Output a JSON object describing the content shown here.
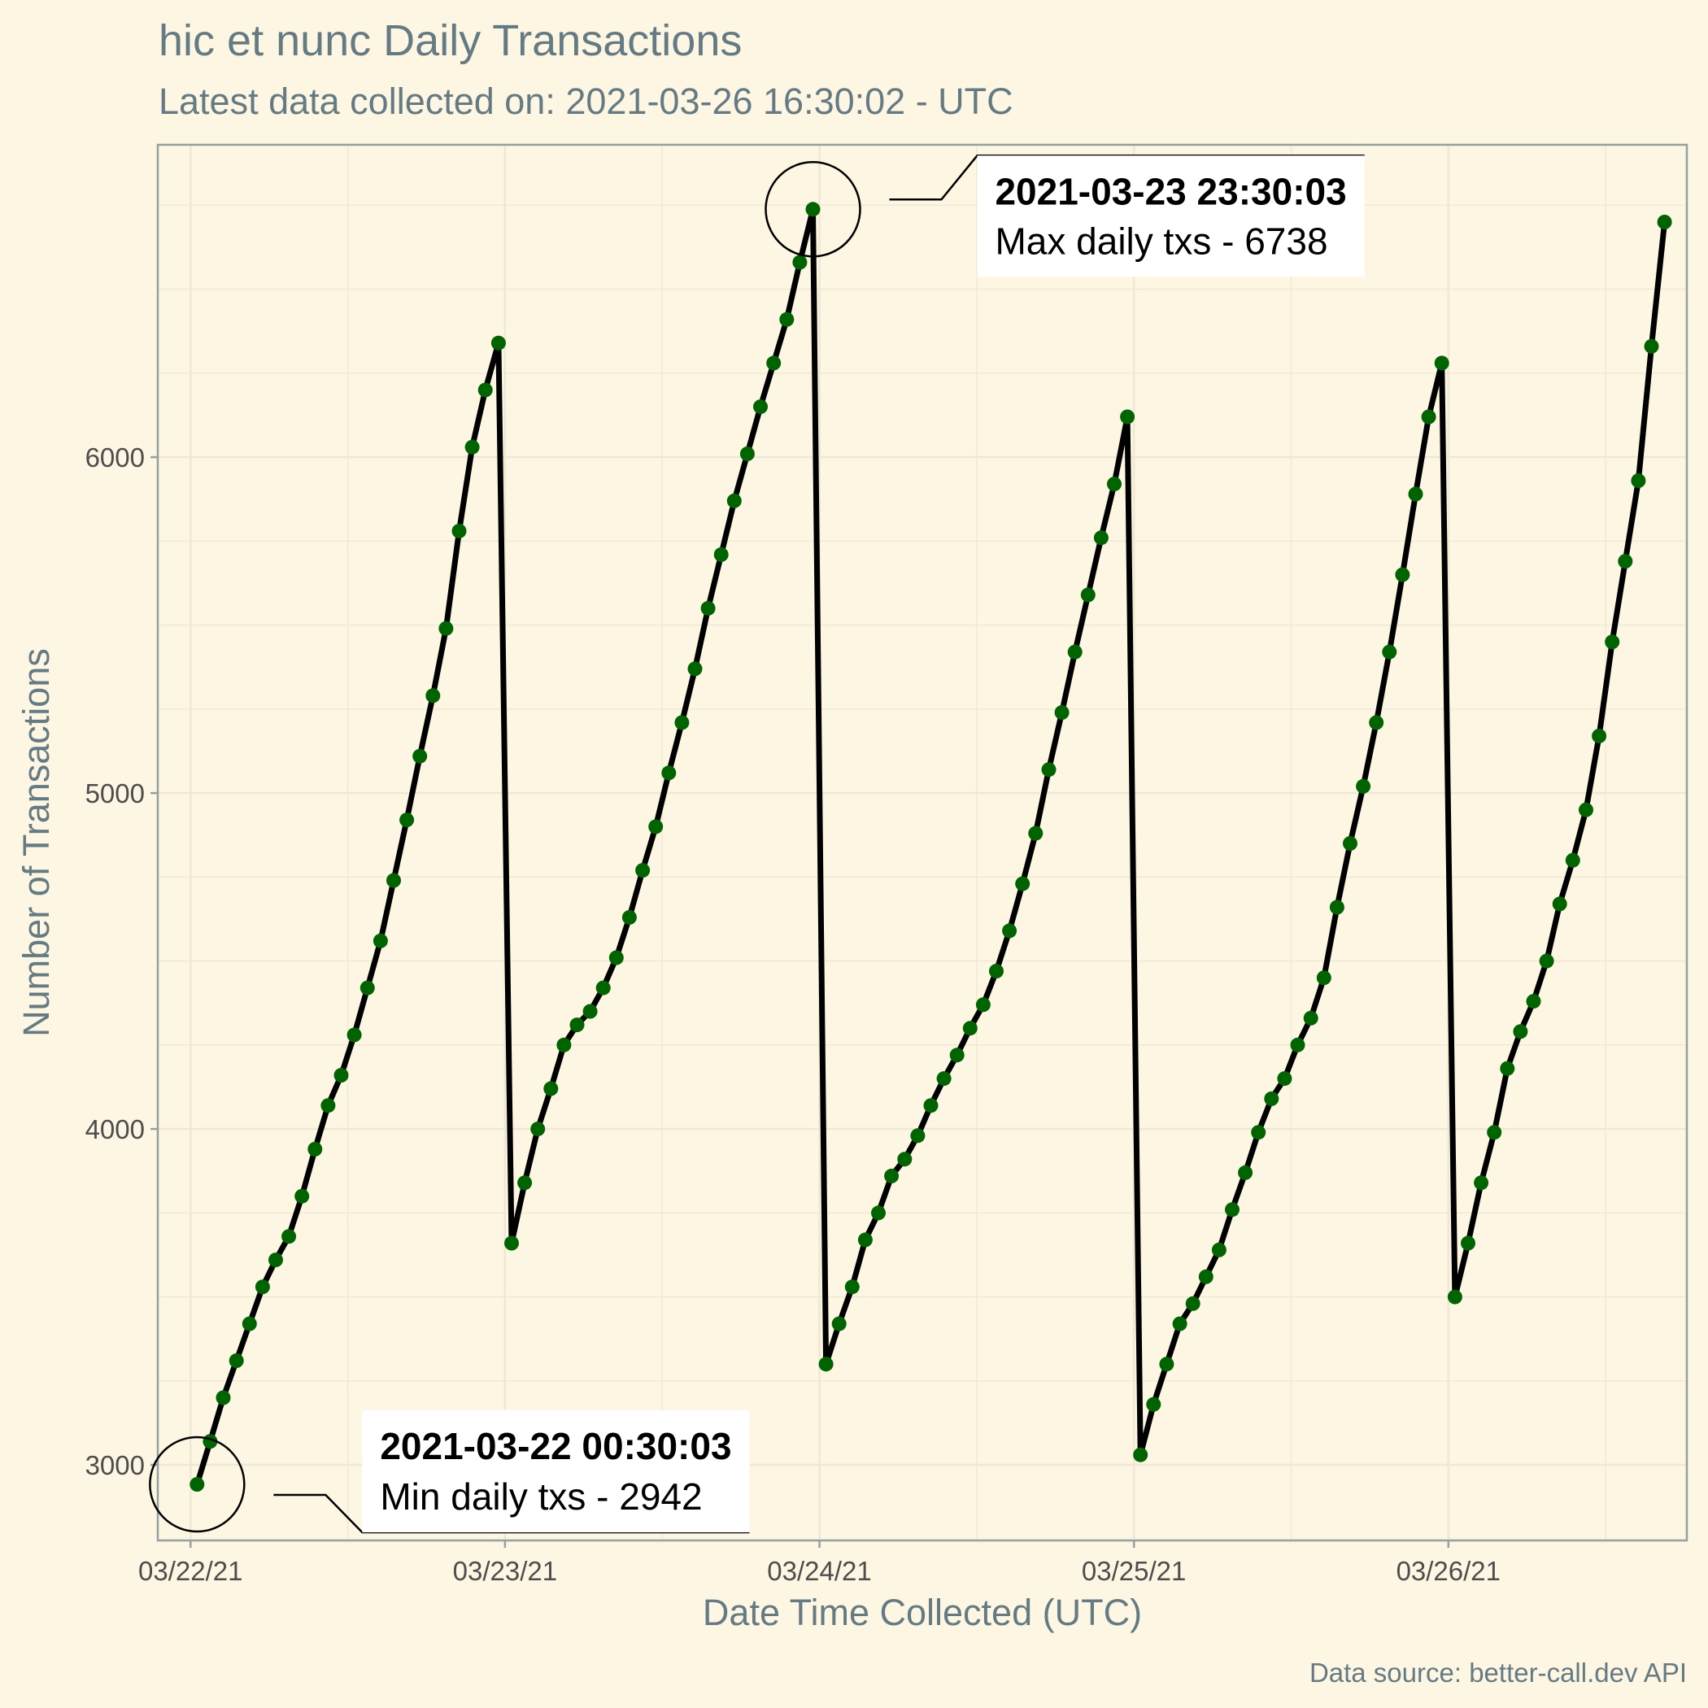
{
  "chart_data": {
    "type": "line",
    "title": "hic et nunc Daily Transactions",
    "subtitle": "Latest data collected on: 2021-03-26 16:30:02  - UTC",
    "xlabel": "Date Time Collected (UTC)",
    "ylabel": "Number of Transactions",
    "caption": "Data source: better-call.dev API",
    "x_tick_labels": [
      "03/22/21",
      "03/23/21",
      "03/24/21",
      "03/25/21",
      "03/26/21"
    ],
    "y_ticks": [
      3000,
      4000,
      5000,
      6000
    ],
    "y_tick_labels": [
      "3000",
      "4000",
      "5000",
      "6000"
    ],
    "xlim_hours": [
      -2.5,
      114.2
    ],
    "ylim": [
      2775,
      6930
    ],
    "grid": true,
    "line_color": "#000000",
    "point_color": "#006400",
    "background": "#fdf6e3",
    "x_unit": "hours since 2021-03-22 00:00 UTC",
    "x": [
      0.5,
      1.5,
      2.5,
      3.5,
      4.5,
      5.5,
      6.5,
      7.5,
      8.5,
      9.5,
      10.5,
      11.5,
      12.5,
      13.5,
      14.5,
      15.5,
      16.5,
      17.5,
      18.5,
      19.5,
      20.5,
      21.5,
      22.5,
      23.5,
      24.5,
      25.5,
      26.5,
      27.5,
      28.5,
      29.5,
      30.5,
      31.5,
      32.5,
      33.5,
      34.5,
      35.5,
      36.5,
      37.5,
      38.5,
      39.5,
      40.5,
      41.5,
      42.5,
      43.5,
      44.5,
      45.5,
      46.5,
      47.5,
      48.5,
      49.5,
      50.5,
      51.5,
      52.5,
      53.5,
      54.5,
      55.5,
      56.5,
      57.5,
      58.5,
      59.5,
      60.5,
      61.5,
      62.5,
      63.5,
      64.5,
      65.5,
      66.5,
      67.5,
      68.5,
      69.5,
      70.5,
      71.5,
      72.5,
      73.5,
      74.5,
      75.5,
      76.5,
      77.5,
      78.5,
      79.5,
      80.5,
      81.5,
      82.5,
      83.5,
      84.5,
      85.5,
      86.5,
      87.5,
      88.5,
      89.5,
      90.5,
      91.5,
      92.5,
      93.5,
      94.5,
      95.5,
      96.5,
      97.5,
      98.5,
      99.5,
      100.5,
      101.5,
      102.5,
      103.5,
      104.5,
      105.5,
      106.5,
      107.5,
      108.5,
      109.5,
      110.5,
      111.5,
      112.5
    ],
    "values": [
      2942,
      3070,
      3200,
      3310,
      3420,
      3530,
      3610,
      3680,
      3800,
      3940,
      4070,
      4160,
      4280,
      4420,
      4560,
      4740,
      4920,
      5110,
      5290,
      5490,
      5780,
      6030,
      6200,
      6340,
      3660,
      3840,
      4000,
      4120,
      4250,
      4310,
      4350,
      4420,
      4510,
      4630,
      4770,
      4900,
      5060,
      5210,
      5370,
      5550,
      5710,
      5870,
      6010,
      6150,
      6280,
      6410,
      6580,
      6738,
      3300,
      3420,
      3530,
      3670,
      3750,
      3860,
      3910,
      3980,
      4070,
      4150,
      4220,
      4300,
      4370,
      4470,
      4590,
      4730,
      4880,
      5070,
      5240,
      5420,
      5590,
      5760,
      5920,
      6120,
      3030,
      3180,
      3300,
      3420,
      3480,
      3560,
      3640,
      3760,
      3870,
      3990,
      4090,
      4150,
      4250,
      4330,
      4450,
      4660,
      4850,
      5020,
      5210,
      5420,
      5650,
      5890,
      6120,
      6280,
      3500,
      3660,
      3840,
      3990,
      4180,
      4290,
      4380,
      4500,
      4670,
      4800,
      4950,
      5170,
      5450,
      5690,
      5930,
      6330,
      6700
    ],
    "annotations": [
      {
        "label_bold": "2021-03-22 00:30:03",
        "label_text": "Min daily txs - 2942",
        "x": 0.5,
        "y": 2942
      },
      {
        "label_bold": "2021-03-23 23:30:03",
        "label_text": "Max daily txs - 6738",
        "x": 47.5,
        "y": 6738
      }
    ]
  }
}
